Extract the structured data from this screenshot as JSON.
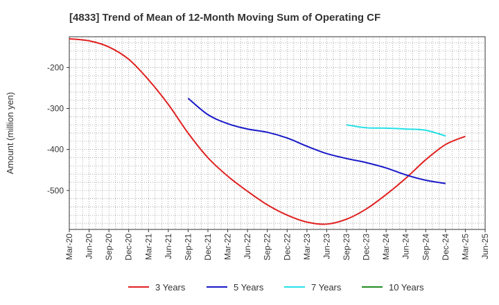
{
  "chart_data": {
    "type": "line",
    "title": "[4833]  Trend of Mean of 12-Month Moving Sum of Operating CF",
    "xlabel": "",
    "ylabel": "Amount (million yen)",
    "ylim": [
      -595,
      -125
    ],
    "yticks": [
      -200,
      -300,
      -400,
      -500
    ],
    "ytick_labels": [
      "-200",
      "-300",
      "-400",
      "-500"
    ],
    "x_tick_labels": [
      "Mar-20",
      "Jun-20",
      "Sep-20",
      "Dec-20",
      "Mar-21",
      "Jun-21",
      "Sep-21",
      "Dec-21",
      "Mar-22",
      "Jun-22",
      "Sep-22",
      "Dec-22",
      "Mar-23",
      "Jun-23",
      "Sep-23",
      "Dec-23",
      "Mar-24",
      "Jun-24",
      "Sep-24",
      "Dec-24",
      "Mar-25",
      "Jun-25"
    ],
    "grid": true,
    "legend_position": "bottom",
    "series": [
      {
        "name": "3 Years",
        "color": "#e02020",
        "points": [
          [
            0,
            -130
          ],
          [
            1,
            -135
          ],
          [
            2,
            -150
          ],
          [
            3,
            -180
          ],
          [
            4,
            -230
          ],
          [
            5,
            -290
          ],
          [
            6,
            -360
          ],
          [
            7,
            -420
          ],
          [
            8,
            -465
          ],
          [
            9,
            -502
          ],
          [
            10,
            -535
          ],
          [
            11,
            -560
          ],
          [
            12,
            -577
          ],
          [
            13,
            -582
          ],
          [
            14,
            -570
          ],
          [
            15,
            -545
          ],
          [
            16,
            -510
          ],
          [
            17,
            -470
          ],
          [
            18,
            -425
          ],
          [
            19,
            -388
          ],
          [
            20,
            -368
          ]
        ]
      },
      {
        "name": "5 Years",
        "color": "#1818c8",
        "points": [
          [
            6,
            -275
          ],
          [
            7,
            -315
          ],
          [
            8,
            -337
          ],
          [
            9,
            -350
          ],
          [
            10,
            -358
          ],
          [
            11,
            -372
          ],
          [
            12,
            -392
          ],
          [
            13,
            -410
          ],
          [
            14,
            -422
          ],
          [
            15,
            -432
          ],
          [
            16,
            -445
          ],
          [
            17,
            -462
          ],
          [
            18,
            -475
          ],
          [
            19,
            -483
          ]
        ]
      },
      {
        "name": "7 Years",
        "color": "#22e0e6",
        "points": [
          [
            14,
            -340
          ],
          [
            15,
            -347
          ],
          [
            16,
            -348
          ],
          [
            17,
            -350
          ],
          [
            18,
            -353
          ],
          [
            19,
            -367
          ]
        ]
      },
      {
        "name": "10 Years",
        "color": "#228b22",
        "points": []
      }
    ]
  }
}
